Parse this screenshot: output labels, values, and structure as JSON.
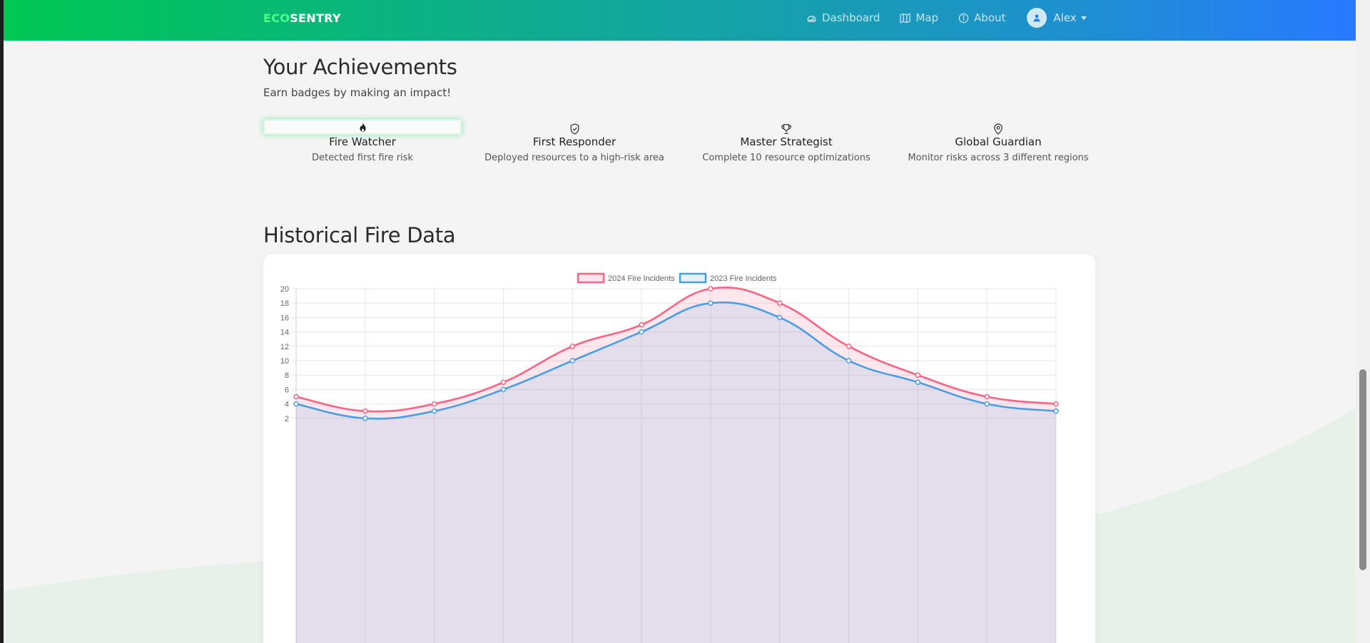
{
  "brand": {
    "part1": "ECO",
    "part2": "SENTRY"
  },
  "nav": {
    "dashboard": "Dashboard",
    "map": "Map",
    "about": "About",
    "user": "Alex"
  },
  "achievements": {
    "title": "Your Achievements",
    "subtitle": "Earn badges by making an impact!",
    "badges": [
      {
        "name": "Fire Watcher",
        "desc": "Detected first fire risk",
        "icon": "flame-icon",
        "unlocked": true
      },
      {
        "name": "First Responder",
        "desc": "Deployed resources to a high-risk area",
        "icon": "shield-check-icon",
        "unlocked": false
      },
      {
        "name": "Master Strategist",
        "desc": "Complete 10 resource optimizations",
        "icon": "trophy-icon",
        "unlocked": false
      },
      {
        "name": "Global Guardian",
        "desc": "Monitor risks across 3 different regions",
        "icon": "map-pin-icon",
        "unlocked": false
      }
    ]
  },
  "history": {
    "title": "Historical Fire Data"
  },
  "colors": {
    "series2024": "#ff6384",
    "series2023": "#4a9fe3",
    "headerStart": "#00c853",
    "headerEnd": "#2979ff"
  },
  "chart_data": {
    "type": "line",
    "title": "",
    "xlabel": "",
    "ylabel": "",
    "legend": "top-center",
    "grid": true,
    "ylim": [
      0,
      20
    ],
    "yticks": [
      2,
      4,
      6,
      8,
      10,
      12,
      14,
      16,
      18,
      20
    ],
    "series": [
      {
        "name": "2024 Fire Incidents",
        "color": "#ff6384",
        "values": [
          5,
          3,
          4,
          7,
          12,
          15,
          20,
          18,
          12,
          8,
          5,
          4
        ]
      },
      {
        "name": "2023 Fire Incidents",
        "color": "#4a9fe3",
        "values": [
          4,
          2,
          3,
          6,
          10,
          14,
          18,
          16,
          10,
          7,
          4,
          3
        ]
      }
    ]
  }
}
